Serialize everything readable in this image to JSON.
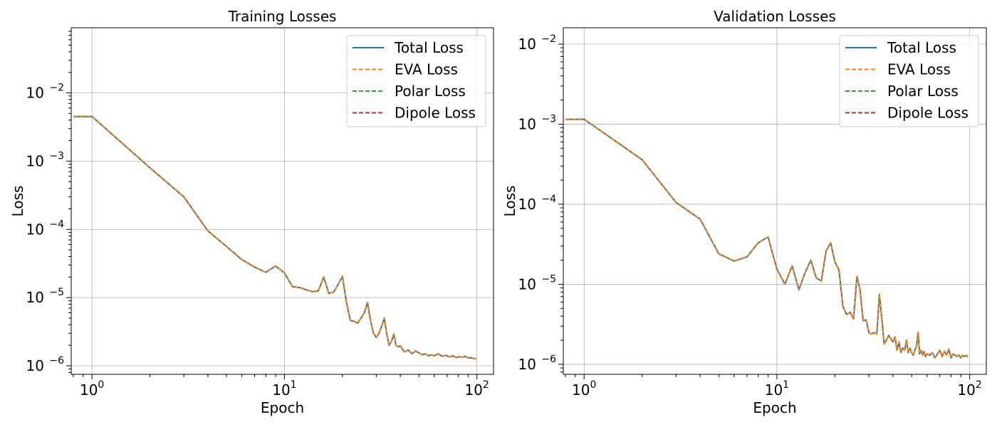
{
  "chart_data": [
    {
      "type": "line",
      "title": "Training Losses",
      "xlabel": "Epoch",
      "ylabel": "Loss",
      "xscale": "log",
      "yscale": "log",
      "xlim": [
        0.78,
        122
      ],
      "ylim": [
        7.5e-07,
        0.09
      ],
      "xticks": [
        {
          "value": 1,
          "base": "10",
          "exp": "0"
        },
        {
          "value": 10,
          "base": "10",
          "exp": "1"
        },
        {
          "value": 100,
          "base": "10",
          "exp": "2"
        }
      ],
      "yticks": [
        {
          "value": 1e-06,
          "base": "10",
          "exp": "−6"
        },
        {
          "value": 1e-05,
          "base": "10",
          "exp": "−5"
        },
        {
          "value": 0.0001,
          "base": "10",
          "exp": "−4"
        },
        {
          "value": 0.001,
          "base": "10",
          "exp": "−3"
        },
        {
          "value": 0.01,
          "base": "10",
          "exp": "−2"
        }
      ],
      "grid": true,
      "legend_position": "top-right",
      "series": [
        {
          "name": "Total Loss",
          "color": "#1f77b4",
          "style": "solid"
        },
        {
          "name": "EVA Loss",
          "color": "#ff7f0e",
          "style": "dashed"
        },
        {
          "name": "Polar Loss",
          "color": "#2ca02c",
          "style": "dashed"
        },
        {
          "name": "Dipole Loss",
          "color": "#d62728",
          "style": "dashed"
        }
      ],
      "x": [
        0.8,
        1,
        2,
        3,
        4,
        5,
        6,
        7,
        8,
        9,
        10,
        11,
        12,
        13,
        14,
        15,
        16,
        17,
        18,
        19,
        20,
        21,
        22,
        23,
        24,
        25,
        26,
        27,
        28,
        29,
        30,
        31,
        32,
        33,
        34,
        35,
        36,
        37,
        38,
        39,
        40,
        42,
        44,
        46,
        48,
        50,
        52,
        54,
        56,
        58,
        60,
        63,
        66,
        69,
        72,
        75,
        78,
        81,
        84,
        87,
        90,
        93,
        96,
        99
      ],
      "y": [
        0.0045,
        0.0045,
        0.0008,
        0.0003,
        9.5e-05,
        5.6e-05,
        3.6e-05,
        2.8e-05,
        2.35e-05,
        2.9e-05,
        2.3e-05,
        1.45e-05,
        1.4e-05,
        1.3e-05,
        1.22e-05,
        1.25e-05,
        2e-05,
        1.15e-05,
        1.2e-05,
        1.55e-05,
        2.05e-05,
        8.5e-06,
        4.6e-06,
        4.5e-06,
        4.2e-06,
        5e-06,
        6e-06,
        8.5e-06,
        4.6e-06,
        3e-06,
        2.6e-06,
        3e-06,
        3.8e-06,
        5e-06,
        3e-06,
        2e-06,
        2.3e-06,
        2.9e-06,
        2e-06,
        1.9e-06,
        1.95e-06,
        1.6e-06,
        1.7e-06,
        1.5e-06,
        1.65e-06,
        1.55e-06,
        1.45e-06,
        1.5e-06,
        1.4e-06,
        1.45e-06,
        1.4e-06,
        1.5e-06,
        1.38e-06,
        1.42e-06,
        1.35e-06,
        1.4e-06,
        1.32e-06,
        1.36e-06,
        1.33e-06,
        1.38e-06,
        1.3e-06,
        1.32e-06,
        1.28e-06,
        1.27e-06
      ]
    },
    {
      "type": "line",
      "title": "Validation Losses",
      "xlabel": "Epoch",
      "ylabel": "Loss",
      "xscale": "log",
      "yscale": "log",
      "xlim": [
        0.78,
        122
      ],
      "ylim": [
        7.5e-07,
        0.016
      ],
      "xticks": [
        {
          "value": 1,
          "base": "10",
          "exp": "0"
        },
        {
          "value": 10,
          "base": "10",
          "exp": "1"
        },
        {
          "value": 100,
          "base": "10",
          "exp": "2"
        }
      ],
      "yticks": [
        {
          "value": 1e-06,
          "base": "10",
          "exp": "−6"
        },
        {
          "value": 1e-05,
          "base": "10",
          "exp": "−5"
        },
        {
          "value": 0.0001,
          "base": "10",
          "exp": "−4"
        },
        {
          "value": 0.001,
          "base": "10",
          "exp": "−3"
        },
        {
          "value": 0.01,
          "base": "10",
          "exp": "−2"
        }
      ],
      "grid": true,
      "legend_position": "top-right",
      "series": [
        {
          "name": "Total Loss",
          "color": "#1f77b4",
          "style": "solid"
        },
        {
          "name": "EVA Loss",
          "color": "#ff7f0e",
          "style": "dashed"
        },
        {
          "name": "Polar Loss",
          "color": "#2ca02c",
          "style": "dashed"
        },
        {
          "name": "Dipole Loss",
          "color": "#d62728",
          "style": "dashed"
        }
      ],
      "x": [
        0.8,
        1,
        2,
        3,
        4,
        5,
        6,
        7,
        8,
        9,
        10,
        11,
        12,
        13,
        14,
        15,
        16,
        17,
        18,
        19,
        20,
        21,
        22,
        23,
        24,
        25,
        26,
        27,
        28,
        29,
        30,
        31,
        32,
        33,
        34,
        35,
        36,
        37,
        38,
        39,
        40,
        41,
        42,
        43,
        44,
        45,
        46,
        47,
        48,
        49,
        50,
        51,
        52,
        53,
        54,
        55,
        56,
        57,
        58,
        59,
        60,
        62,
        64,
        66,
        68,
        70,
        72,
        74,
        76,
        78,
        80,
        82,
        84,
        86,
        88,
        90,
        92,
        94,
        96,
        98
      ],
      "y": [
        0.00115,
        0.00115,
        0.00036,
        0.000105,
        6.5e-05,
        2.4e-05,
        1.95e-05,
        2.2e-05,
        3.3e-05,
        3.9e-05,
        1.55e-05,
        1e-05,
        1.7e-05,
        8.5e-06,
        1.4e-05,
        2e-05,
        1.2e-05,
        1.1e-05,
        2.6e-05,
        3.3e-05,
        1.9e-05,
        1.5e-05,
        5.3e-06,
        4.2e-06,
        4.5e-06,
        3.7e-06,
        1.25e-05,
        8.5e-06,
        3.5e-06,
        3.6e-06,
        2.5e-06,
        2.4e-06,
        2.5e-06,
        2.4e-06,
        7.5e-06,
        3.8e-06,
        1.8e-06,
        2e-06,
        2.3e-06,
        2.1e-06,
        1.9e-06,
        2.2e-06,
        1.5e-06,
        1.9e-06,
        1.4e-06,
        1.6e-06,
        1.5e-06,
        2e-06,
        1.4e-06,
        1.6e-06,
        1.4e-06,
        1.3e-06,
        1.5e-06,
        1.7e-06,
        2.5e-06,
        1.35e-06,
        1.5e-06,
        1.3e-06,
        1.45e-06,
        1.25e-06,
        1.35e-06,
        1.3e-06,
        1.4e-06,
        1.2e-06,
        1.35e-06,
        1.5e-06,
        1.25e-06,
        1.45e-06,
        1.3e-06,
        1.55e-06,
        1.2e-06,
        1.35e-06,
        1.3e-06,
        1.25e-06,
        1.3e-06,
        1.2e-06,
        1.3e-06,
        1.25e-06,
        1.3e-06,
        1.22e-06
      ]
    }
  ]
}
